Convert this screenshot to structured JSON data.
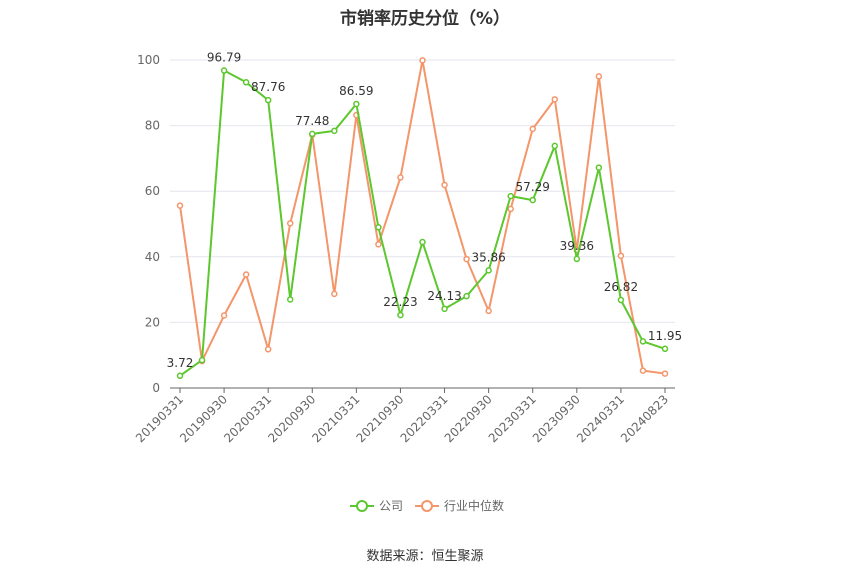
{
  "chart_data": {
    "type": "line",
    "title": "市销率历史分位（%）",
    "xlabel": "",
    "ylabel": "",
    "ylim": [
      0,
      100
    ],
    "yticks": [
      0,
      20,
      40,
      60,
      80,
      100
    ],
    "x": [
      "20190331",
      "20190630",
      "20190930",
      "20191231",
      "20200331",
      "20200630",
      "20200930",
      "20201231",
      "20210331",
      "20210630",
      "20210930",
      "20211231",
      "20220331",
      "20220630",
      "20220930",
      "20221231",
      "20230331",
      "20230630",
      "20230930",
      "20231231",
      "20240331",
      "20240630",
      "20240823"
    ],
    "xtick_labels": [
      "20190331",
      "20190930",
      "20200331",
      "20200930",
      "20210331",
      "20210930",
      "20220331",
      "20220930",
      "20230331",
      "20230930",
      "20240331",
      "20240823"
    ],
    "series": [
      {
        "name": "公司",
        "color": "#5cc72e",
        "values": [
          3.72,
          8.5,
          96.79,
          93.2,
          87.76,
          27.0,
          77.48,
          78.4,
          86.59,
          49.0,
          22.23,
          44.5,
          24.13,
          28.0,
          35.86,
          58.5,
          57.29,
          73.8,
          39.36,
          67.2,
          26.82,
          14.2,
          11.95
        ],
        "labels": {
          "0": "3.72",
          "2": "96.79",
          "4": "87.76",
          "6": "77.48",
          "8": "86.59",
          "10": "22.23",
          "12": "24.13",
          "14": "35.86",
          "16": "57.29",
          "18": "39.36",
          "20": "26.82",
          "22": "11.95"
        }
      },
      {
        "name": "行业中位数",
        "color": "#f4956a",
        "values": [
          55.6,
          8.2,
          22.1,
          34.6,
          11.8,
          50.2,
          77.2,
          28.7,
          83.2,
          43.8,
          64.2,
          99.9,
          61.9,
          39.3,
          23.5,
          54.6,
          79.0,
          88.0,
          42.0,
          95.0,
          40.3,
          5.3,
          4.4
        ]
      }
    ],
    "legend_position": "bottom",
    "grid": true
  },
  "source": "数据来源：恒生聚源"
}
